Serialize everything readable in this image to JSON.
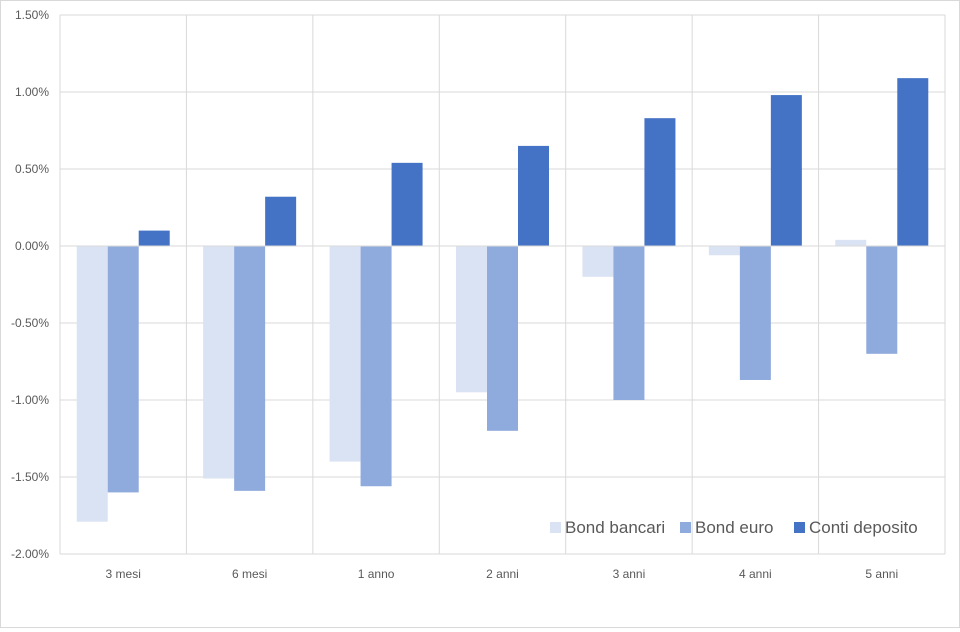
{
  "chart_data": {
    "type": "bar",
    "categories": [
      "3 mesi",
      "6 mesi",
      "1 anno",
      "2 anni",
      "3 anni",
      "4 anni",
      "5 anni"
    ],
    "series": [
      {
        "name": "Bond bancari",
        "color": "#dae3f3",
        "values": [
          -1.79,
          -1.51,
          -1.4,
          -0.95,
          -0.2,
          -0.06,
          0.04
        ]
      },
      {
        "name": "Bond euro",
        "color": "#8faadc",
        "values": [
          -1.6,
          -1.59,
          -1.56,
          -1.2,
          -1.0,
          -0.87,
          -0.7
        ]
      },
      {
        "name": "Conti deposito",
        "color": "#4472c4",
        "values": [
          0.1,
          0.32,
          0.54,
          0.65,
          0.83,
          0.98,
          1.09
        ]
      }
    ],
    "y_ticks": [
      "1.50%",
      "1.00%",
      "0.50%",
      "0.00%",
      "-0.50%",
      "-1.00%",
      "-1.50%",
      "-2.00%"
    ],
    "ylim": [
      -2.0,
      1.5
    ],
    "y_unit": "%",
    "grid": true,
    "legend_position": "bottom-right",
    "title": "",
    "xlabel": "",
    "ylabel": ""
  }
}
